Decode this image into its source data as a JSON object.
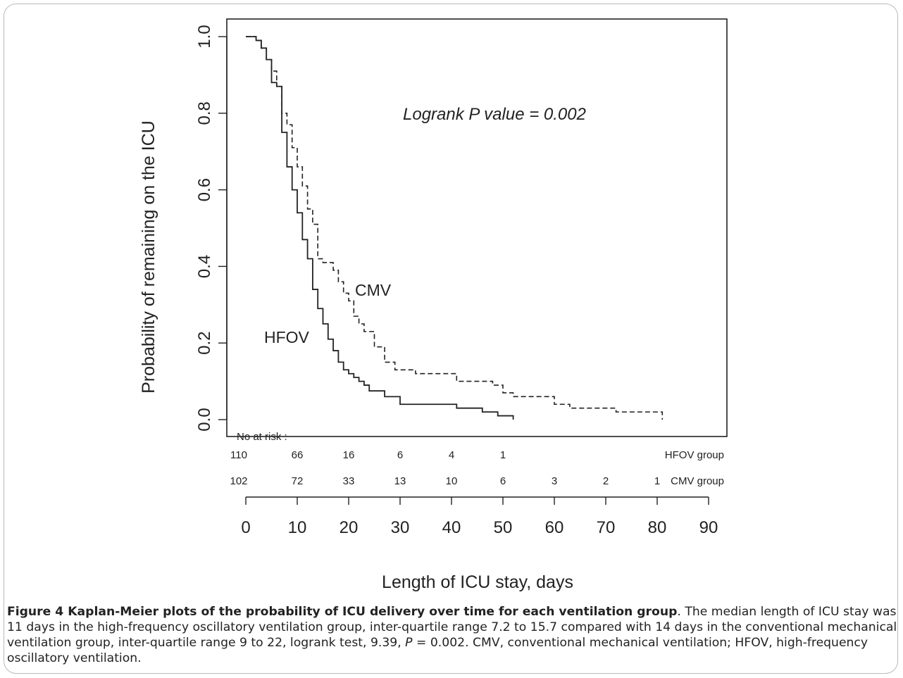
{
  "chart_data": {
    "type": "line",
    "title": "",
    "xlabel": "Length of ICU stay, days",
    "ylabel": "Probability of remaining on the ICU",
    "xlim": [
      0,
      90
    ],
    "ylim": [
      0,
      1
    ],
    "x_ticks": [
      "0",
      "10",
      "20",
      "30",
      "40",
      "50",
      "60",
      "70",
      "80",
      "90"
    ],
    "y_ticks": [
      "0.0",
      "0.2",
      "0.4",
      "0.6",
      "0.8",
      "1.0"
    ],
    "annotation": "Logrank P value = 0.002",
    "series": [
      {
        "name": "HFOV",
        "line_style": "solid",
        "x": [
          0,
          2,
          3,
          4,
          5,
          6,
          7,
          8,
          9,
          10,
          11,
          12,
          13,
          14,
          15,
          16,
          17,
          18,
          19,
          20,
          21,
          22,
          23,
          24,
          27,
          30,
          41,
          46,
          49,
          52
        ],
        "y": [
          1.0,
          0.99,
          0.97,
          0.94,
          0.88,
          0.87,
          0.75,
          0.66,
          0.6,
          0.54,
          0.47,
          0.42,
          0.34,
          0.29,
          0.25,
          0.21,
          0.18,
          0.15,
          0.13,
          0.12,
          0.11,
          0.1,
          0.09,
          0.075,
          0.06,
          0.04,
          0.03,
          0.02,
          0.01,
          0.0
        ]
      },
      {
        "name": "CMV",
        "line_style": "dashed",
        "x": [
          0,
          2,
          3,
          4,
          5,
          6,
          7,
          8,
          9,
          10,
          11,
          12,
          13,
          14,
          15,
          17,
          18,
          19,
          20,
          21,
          22,
          23,
          25,
          27,
          29,
          33,
          41,
          48,
          50,
          52,
          60,
          63,
          72,
          81
        ],
        "y": [
          1.0,
          0.99,
          0.97,
          0.94,
          0.91,
          0.87,
          0.8,
          0.77,
          0.71,
          0.66,
          0.61,
          0.55,
          0.51,
          0.42,
          0.41,
          0.39,
          0.36,
          0.33,
          0.31,
          0.27,
          0.25,
          0.23,
          0.19,
          0.15,
          0.13,
          0.12,
          0.1,
          0.09,
          0.07,
          0.06,
          0.04,
          0.03,
          0.02,
          0.0
        ]
      }
    ],
    "series_labels": [
      "CMV",
      "HFOV"
    ],
    "at_risk": {
      "heading": "No at risk :",
      "rows": [
        {
          "label": "HFOV group",
          "times": [
            0,
            10,
            20,
            30,
            40,
            50
          ],
          "values": [
            "110",
            "66",
            "16",
            "6",
            "4",
            "1"
          ]
        },
        {
          "label": "CMV group",
          "times": [
            0,
            10,
            20,
            30,
            40,
            50,
            60,
            70,
            80
          ],
          "values": [
            "102",
            "72",
            "33",
            "13",
            "10",
            "6",
            "3",
            "2",
            "1"
          ]
        }
      ]
    }
  },
  "caption": {
    "bold": "Figure 4 Kaplan-Meier plots of the probability of ICU delivery over time for each ventilation group",
    "text_before_p": ". The median length of ICU stay was 11 days in the high-frequency oscillatory ventilation group, inter-quartile range 7.2 to 15.7 compared with 14 days in the conventional mechanical ventilation group, inter-quartile range 9 to 22, logrank test, 9.39, ",
    "p_symbol": "P",
    "text_after_p": " = 0.002. CMV, conventional mechanical ventilation; HFOV, high-frequency oscillatory ventilation."
  }
}
